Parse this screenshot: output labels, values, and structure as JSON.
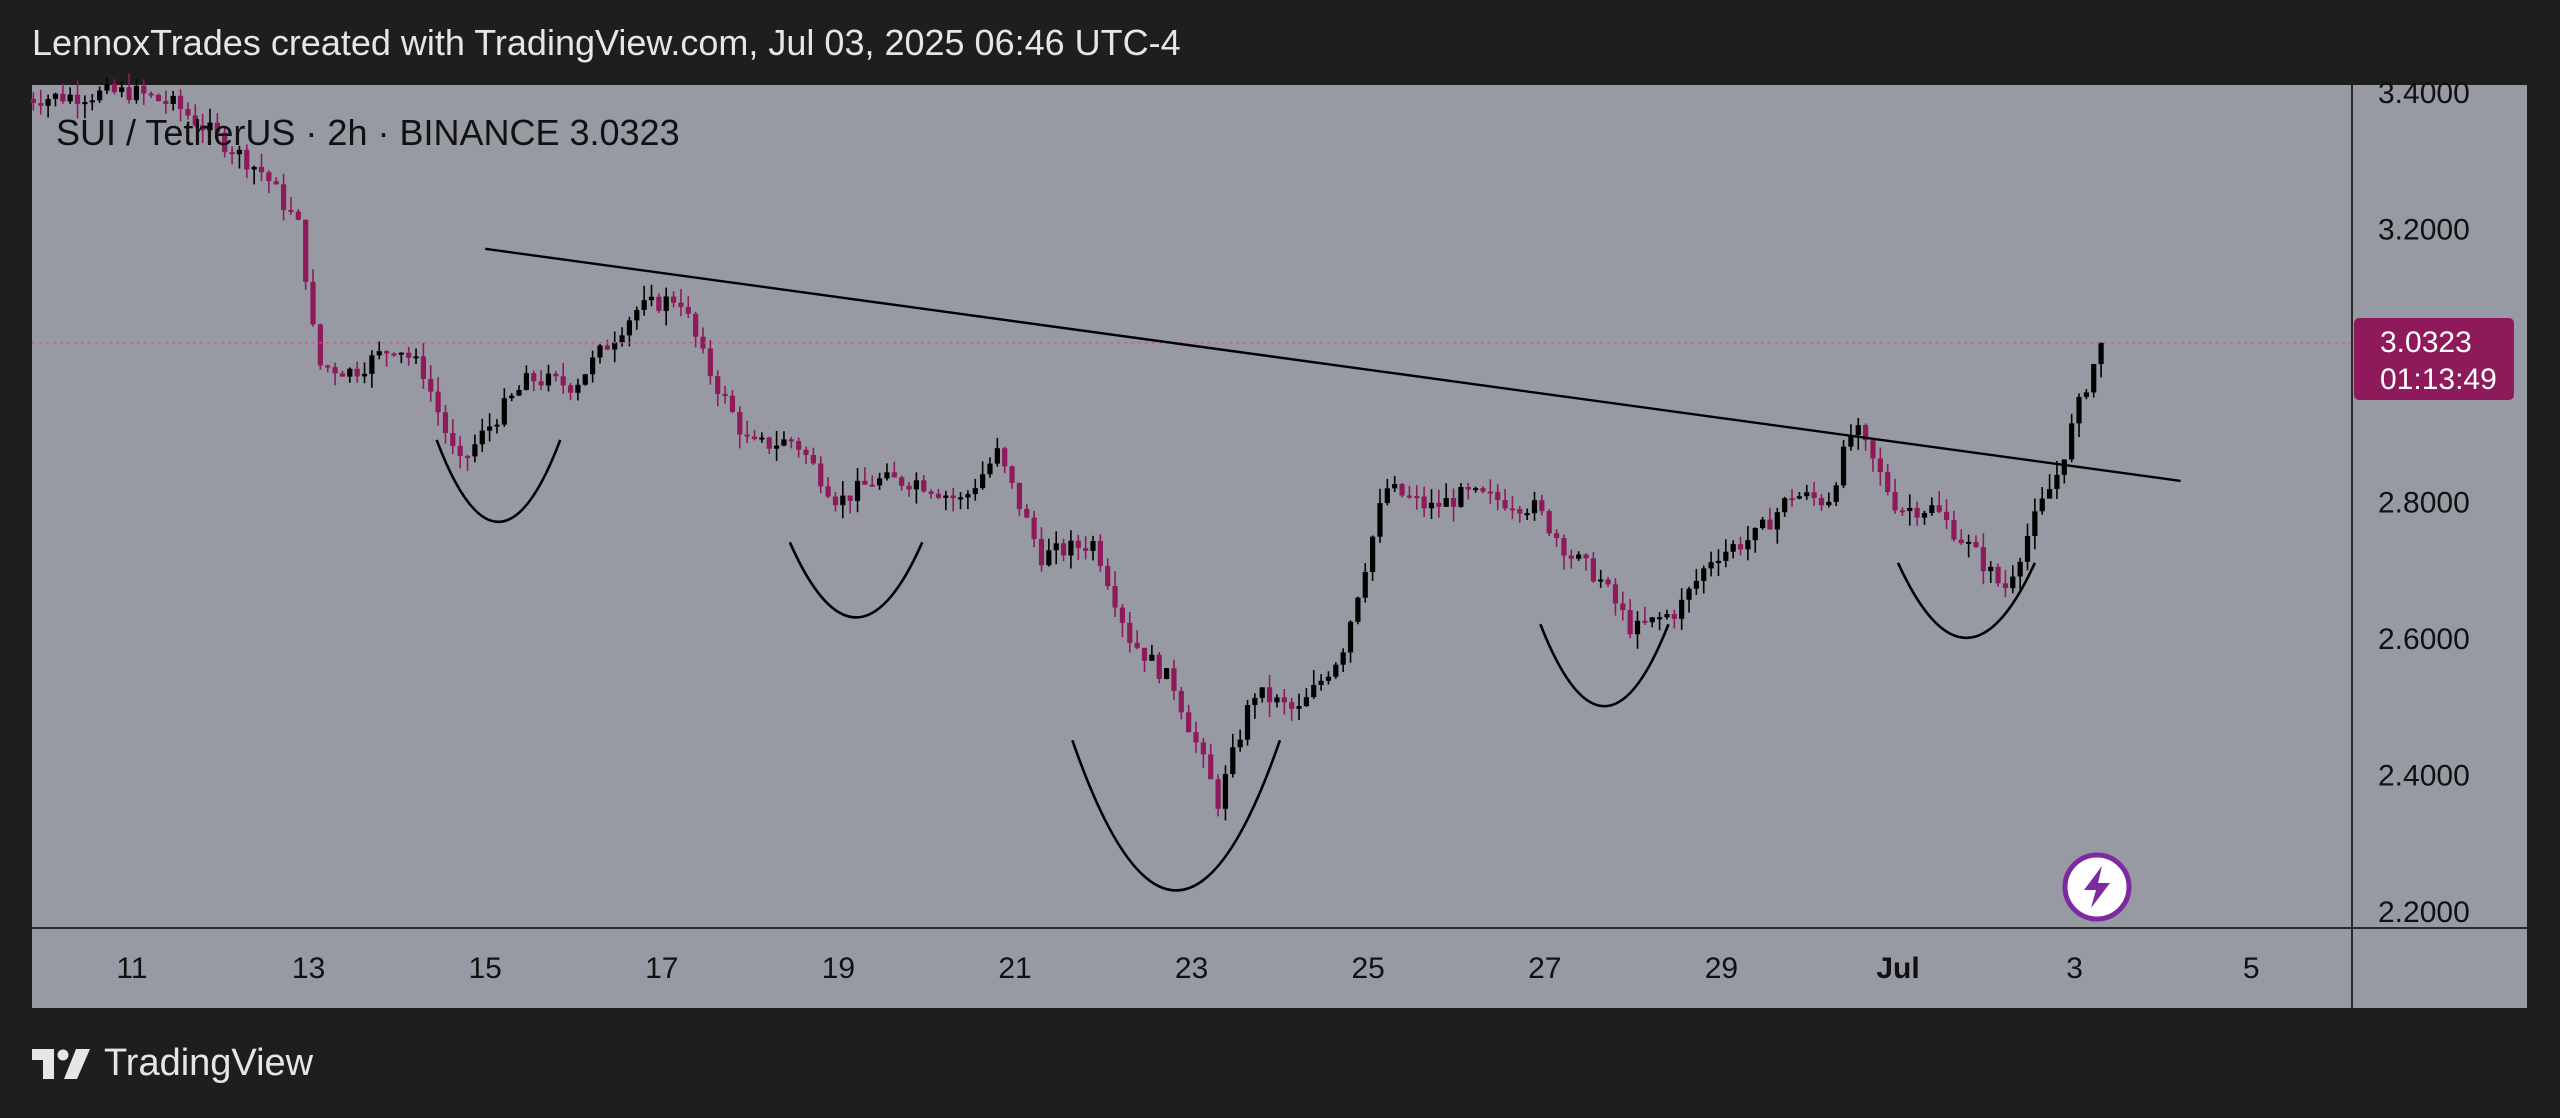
{
  "header": {
    "attribution": "LennoxTrades created with TradingView.com, Jul 03, 2025 06:46 UTC-4"
  },
  "symbol": {
    "label": "SUI / TetherUS · 2h · BINANCE  3.0323"
  },
  "price_badge": {
    "price": "3.0323",
    "countdown": "01:13:49",
    "color": "#8e1a5c"
  },
  "footer": {
    "logo_text": "TradingView"
  },
  "colors": {
    "down": "#8e1a5c",
    "up": "#000000",
    "background": "#979aa3",
    "frame": "#1e1e1e"
  },
  "chart_data": {
    "type": "candlestick",
    "symbol": "SUI / TetherUS",
    "interval": "2h",
    "exchange": "BINANCE",
    "last_price": 3.0323,
    "y_ticks": [
      "3.4000",
      "3.2000",
      "2.8000",
      "2.6000",
      "2.4000",
      "2.2000"
    ],
    "y_tick_values": [
      3.4,
      3.2,
      2.8,
      2.6,
      2.4,
      2.2
    ],
    "ylim": [
      2.175,
      3.41
    ],
    "x_ticks": [
      "11",
      "13",
      "15",
      "17",
      "19",
      "21",
      "23",
      "25",
      "27",
      "29",
      "Jul",
      "3",
      "5"
    ],
    "x_tick_positions_days": [
      0,
      2,
      4,
      6,
      8,
      10,
      12,
      14,
      16,
      18,
      20,
      22,
      24
    ],
    "price_path_days": [
      -1.2,
      0,
      0.5,
      1,
      1.5,
      1.9,
      2.1,
      2.5,
      3.0,
      3.3,
      3.7,
      4.1,
      4.5,
      5.0,
      5.7,
      6.2,
      6.5,
      7.0,
      7.5,
      8.0,
      8.4,
      8.9,
      9.4,
      9.8,
      10.3,
      10.9,
      11.3,
      11.8,
      12.3,
      12.7,
      12.9,
      13.2,
      13.7,
      14.2,
      14.7,
      15.1,
      15.6,
      15.9,
      16.3,
      16.6,
      17.0,
      17.5,
      17.9,
      18.4,
      18.8,
      19.2,
      19.5,
      20.0,
      20.4,
      20.9,
      21.2,
      21.5,
      21.8,
      22.1,
      22.3
    ],
    "price_path_values": [
      3.39,
      3.4,
      3.38,
      3.33,
      3.28,
      3.2,
      3.0,
      2.99,
      3.03,
      2.99,
      2.85,
      2.92,
      2.98,
      2.97,
      3.08,
      3.1,
      3.0,
      2.88,
      2.89,
      2.8,
      2.83,
      2.83,
      2.8,
      2.87,
      2.72,
      2.74,
      2.6,
      2.53,
      2.36,
      2.52,
      2.51,
      2.49,
      2.58,
      2.82,
      2.79,
      2.81,
      2.8,
      2.79,
      2.72,
      2.69,
      2.61,
      2.64,
      2.72,
      2.75,
      2.81,
      2.8,
      2.91,
      2.79,
      2.79,
      2.72,
      2.67,
      2.76,
      2.84,
      2.96,
      3.03
    ],
    "trendline": {
      "from": [
        4.0,
        3.17
      ],
      "to": [
        23.2,
        2.83
      ]
    },
    "arcs": [
      {
        "x_from": 3.45,
        "x_to": 4.85,
        "top": 2.89,
        "bottom": 2.77
      },
      {
        "x_from": 7.45,
        "x_to": 8.95,
        "top": 2.74,
        "bottom": 2.63
      },
      {
        "x_from": 10.65,
        "x_to": 13.0,
        "top": 2.45,
        "bottom": 2.23
      },
      {
        "x_from": 15.95,
        "x_to": 17.4,
        "top": 2.62,
        "bottom": 2.5
      },
      {
        "x_from": 20.0,
        "x_to": 21.55,
        "top": 2.71,
        "bottom": 2.6
      }
    ]
  }
}
